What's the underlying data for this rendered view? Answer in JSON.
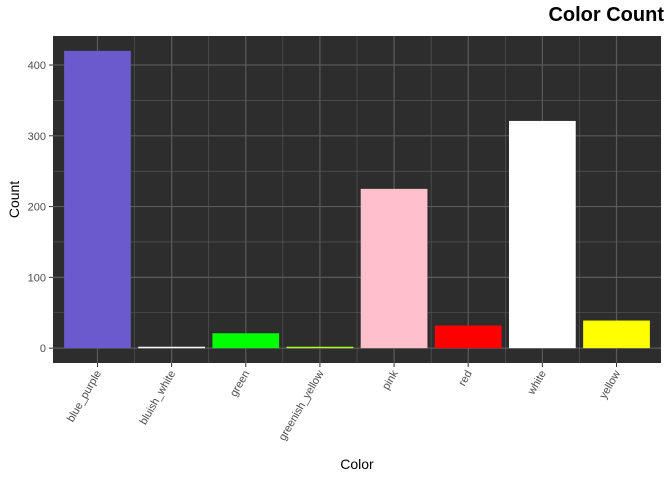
{
  "chart_data": {
    "type": "bar",
    "title": "Color Count",
    "xlabel": "Color",
    "ylabel": "Count",
    "categories": [
      "blue_purple",
      "bluish_white",
      "green",
      "greenish_yellow",
      "pink",
      "red",
      "white",
      "yellow"
    ],
    "values": [
      420,
      2,
      21,
      2,
      225,
      32,
      321,
      39
    ],
    "bar_colors": [
      "#6a5acd",
      "#f0f8ff",
      "#00ff00",
      "#adff2f",
      "#ffc0cb",
      "#ff0000",
      "#ffffff",
      "#ffff00"
    ],
    "ylim": [
      -21,
      441
    ],
    "yticks": [
      0,
      100,
      200,
      300,
      400
    ],
    "grid": true,
    "panel_background": "#2d2d2d",
    "grid_color": "#5a5a5a",
    "legend": "none"
  }
}
